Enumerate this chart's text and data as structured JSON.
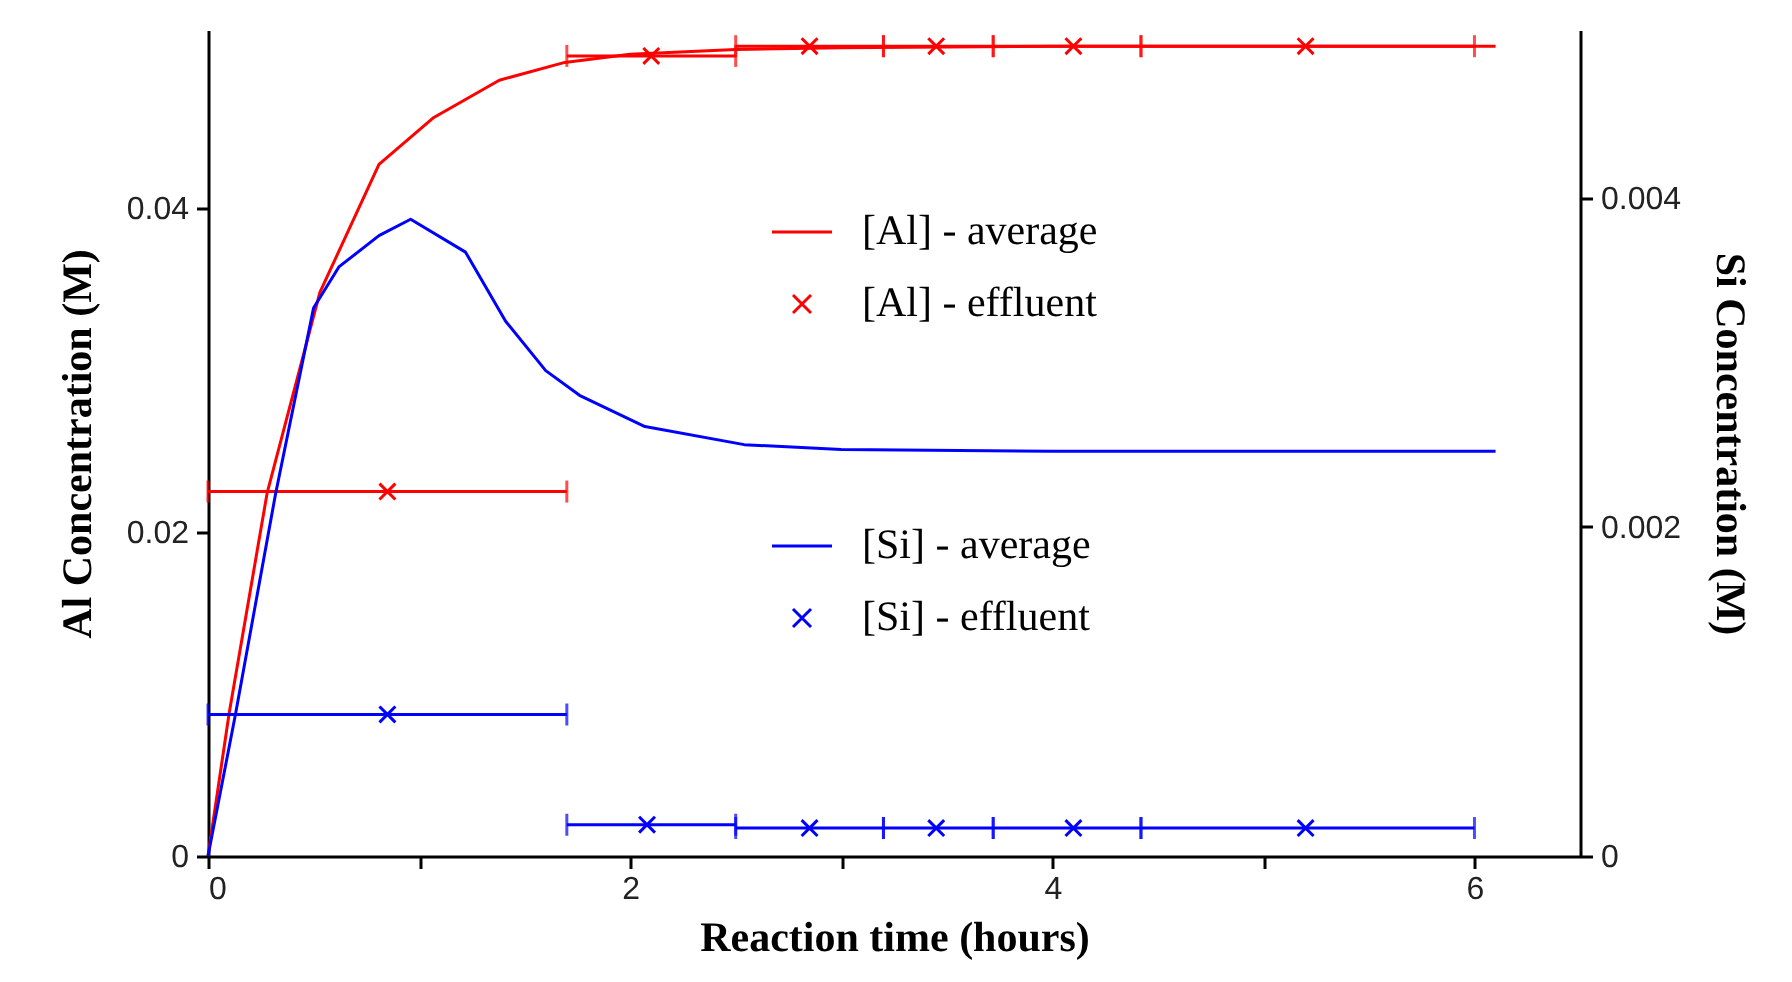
{
  "chart_data": {
    "type": "line",
    "xlabel": "Reaction time (hours)",
    "ylabel": "Al Concentration (M)",
    "y2label": "Si Concentration (M)",
    "xlim": [
      0,
      6.5
    ],
    "xticks": [
      0,
      {
        "value": 1,
        "label": null
      },
      2,
      {
        "value": 3,
        "label": null
      },
      4,
      {
        "value": 5,
        "label": null
      },
      6
    ],
    "ylim": [
      0,
      0.051
    ],
    "yticks": [
      0,
      0.02,
      0.04
    ],
    "y2lim": [
      0,
      0.00502
    ],
    "y2ticks": [
      0,
      0.002,
      0.004
    ],
    "legend": "right",
    "grid": false,
    "series": [
      {
        "name": "[Al] - average",
        "color": "#ff0000",
        "marker": "none",
        "line_style": "solid",
        "x": [
          0,
          0.1,
          0.28,
          0.53,
          0.81,
          1.07,
          1.38,
          1.69,
          2.0,
          2.5,
          3,
          4,
          5,
          6.1
        ],
        "values": [
          0,
          0.0088,
          0.0224,
          0.0348,
          0.0427,
          0.0456,
          0.0479,
          0.049,
          0.0495,
          0.0498,
          0.0499,
          0.05,
          0.05,
          0.05
        ]
      },
      {
        "name": "[Al] - effluent",
        "type": "scatter",
        "color": "#ff0000",
        "marker": "cross",
        "x": [
          0.85,
          2.1,
          2.85,
          3.45,
          4.1,
          5.2
        ],
        "values": [
          0.0225,
          0.0494,
          0.05,
          0.05,
          0.05,
          0.05
        ],
        "xerrors": [
          [
            0,
            1.7
          ],
          [
            1.7,
            2.5
          ],
          [
            2.5,
            3.2
          ],
          [
            3.2,
            3.72
          ],
          [
            3.72,
            4.42
          ],
          [
            4.42,
            6.0
          ]
        ]
      },
      {
        "name": "[Si] - average",
        "axis": "y2",
        "color": "#0000ff",
        "marker": "none",
        "line_style": "solid",
        "x": [
          0,
          0.13,
          0.32,
          0.5,
          0.62,
          0.81,
          0.96,
          1.22,
          1.41,
          1.6,
          1.76,
          2.07,
          2.54,
          3,
          4,
          5,
          6.1
        ],
        "values": [
          0,
          0.00086,
          0.0022,
          0.00333,
          0.00358,
          0.00377,
          0.00387,
          0.00367,
          0.00325,
          0.00295,
          0.0028,
          0.00261,
          0.0025,
          0.00247,
          0.00246,
          0.00246,
          0.00246
        ]
      },
      {
        "name": "[Si] - effluent",
        "type": "scatter",
        "axis": "y2",
        "color": "#0000ff",
        "marker": "cross",
        "x": [
          0.85,
          2.08,
          2.85,
          3.45,
          4.1,
          5.2
        ],
        "values": [
          0.00086,
          0.00019,
          0.00017,
          0.00017,
          0.00017,
          0.00017
        ],
        "xerrors": [
          [
            0,
            1.7
          ],
          [
            1.7,
            2.5
          ],
          [
            2.5,
            3.2
          ],
          [
            3.2,
            3.72
          ],
          [
            3.72,
            4.42
          ],
          [
            4.42,
            6.0
          ]
        ]
      }
    ]
  }
}
